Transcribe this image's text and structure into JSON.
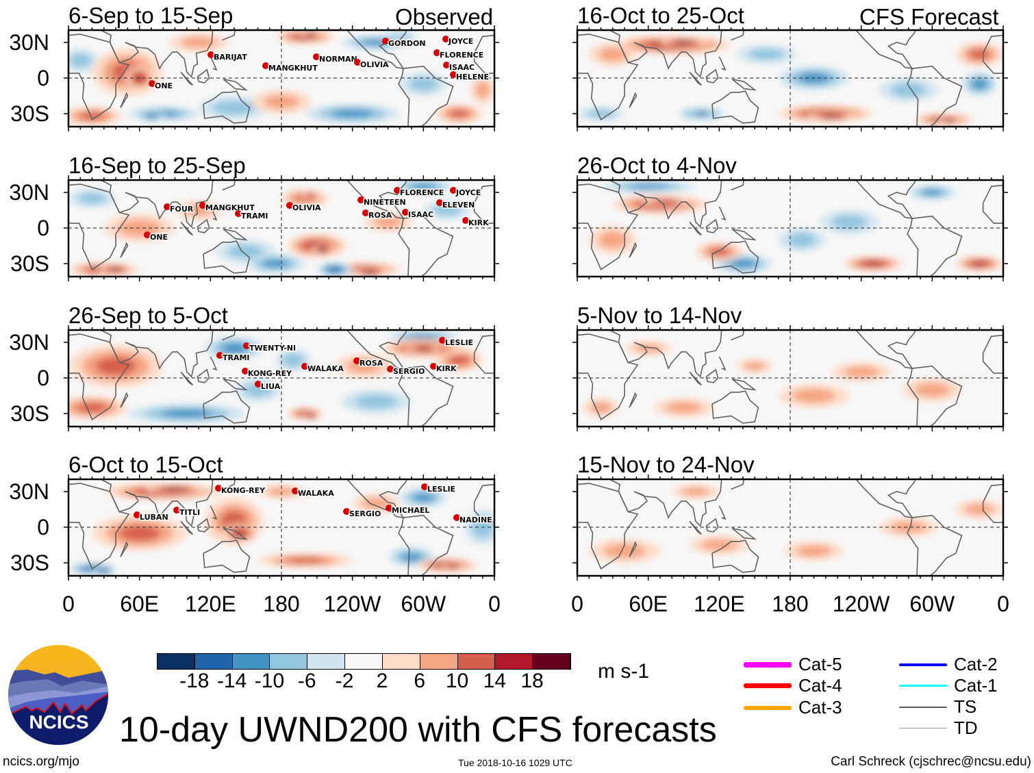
{
  "chart_data": {
    "type": "heatmap",
    "title": "10-day UWND200 with CFS forecasts",
    "variable": "200 hPa zonal wind anomaly",
    "units": "m s-1",
    "observed_label": "Observed",
    "forecast_label": "CFS Forecast",
    "x_ticks": [
      "0",
      "60E",
      "120E",
      "180",
      "120W",
      "60W",
      "0"
    ],
    "y_ticks": [
      "30N",
      "0",
      "30S"
    ],
    "colorbar": {
      "levels": [
        "-18",
        "-14",
        "-10",
        "-6",
        "-2",
        "2",
        "6",
        "10",
        "14",
        "18"
      ],
      "colors": [
        "#0a3161",
        "#2166ac",
        "#4393c3",
        "#92c5de",
        "#d1e5f0",
        "#f7f7f7",
        "#fddbc7",
        "#f4a582",
        "#d6604d",
        "#b2182b",
        "#67001f"
      ]
    },
    "panels": [
      {
        "title": "6-Sep to 15-Sep",
        "column": "observed",
        "storms": [
          "BARIJAT",
          "MANGKHUT",
          "NORMAN",
          "OLIVIA",
          "GORDON",
          "JOYCE",
          "FLORENCE",
          "ISAAC",
          "HELENE",
          "ONE"
        ]
      },
      {
        "title": "16-Sep to 25-Sep",
        "column": "observed",
        "storms": [
          "FOUR",
          "MANGKHUT",
          "TRAMI",
          "OLIVIA",
          "NINETEEN",
          "FLORENCE",
          "JOYCE",
          "ROSA",
          "ISAAC",
          "ELEVEN",
          "KIRK",
          "ONE"
        ]
      },
      {
        "title": "26-Sep to 5-Oct",
        "column": "observed",
        "storms": [
          "TWENTY-NI",
          "TRAMI",
          "KONG-REY",
          "LIUA",
          "WALAKA",
          "ROSA",
          "SERGIO",
          "KIRK",
          "LESLIE"
        ]
      },
      {
        "title": "6-Oct to 15-Oct",
        "column": "observed",
        "storms": [
          "KONG-REY",
          "WALAKA",
          "LESLIE",
          "LUBAN",
          "TITLI",
          "SERGIO",
          "MICHAEL",
          "NADINE"
        ]
      },
      {
        "title": "16-Oct to 25-Oct",
        "column": "forecast",
        "storms": []
      },
      {
        "title": "26-Oct to 4-Nov",
        "column": "forecast",
        "storms": []
      },
      {
        "title": "5-Nov to 14-Nov",
        "column": "forecast",
        "storms": []
      },
      {
        "title": "15-Nov to 24-Nov",
        "column": "forecast",
        "storms": []
      }
    ],
    "track_legend": [
      {
        "label": "Cat-5",
        "color": "#ff00ff"
      },
      {
        "label": "Cat-4",
        "color": "#ff0000"
      },
      {
        "label": "Cat-3",
        "color": "#ffa500"
      },
      {
        "label": "Cat-2",
        "color": "#0000ff"
      },
      {
        "label": "Cat-1",
        "color": "#00ffff"
      },
      {
        "label": "TS",
        "color": "#555555"
      },
      {
        "label": "TD",
        "color": "#999999"
      }
    ]
  },
  "footer": {
    "logo_text": "NCICS",
    "website": "ncics.org/mjo",
    "timestamp": "Tue 2018-10-16 1029 UTC",
    "author": "Carl Schreck (cjschrec@ncsu.edu)"
  }
}
